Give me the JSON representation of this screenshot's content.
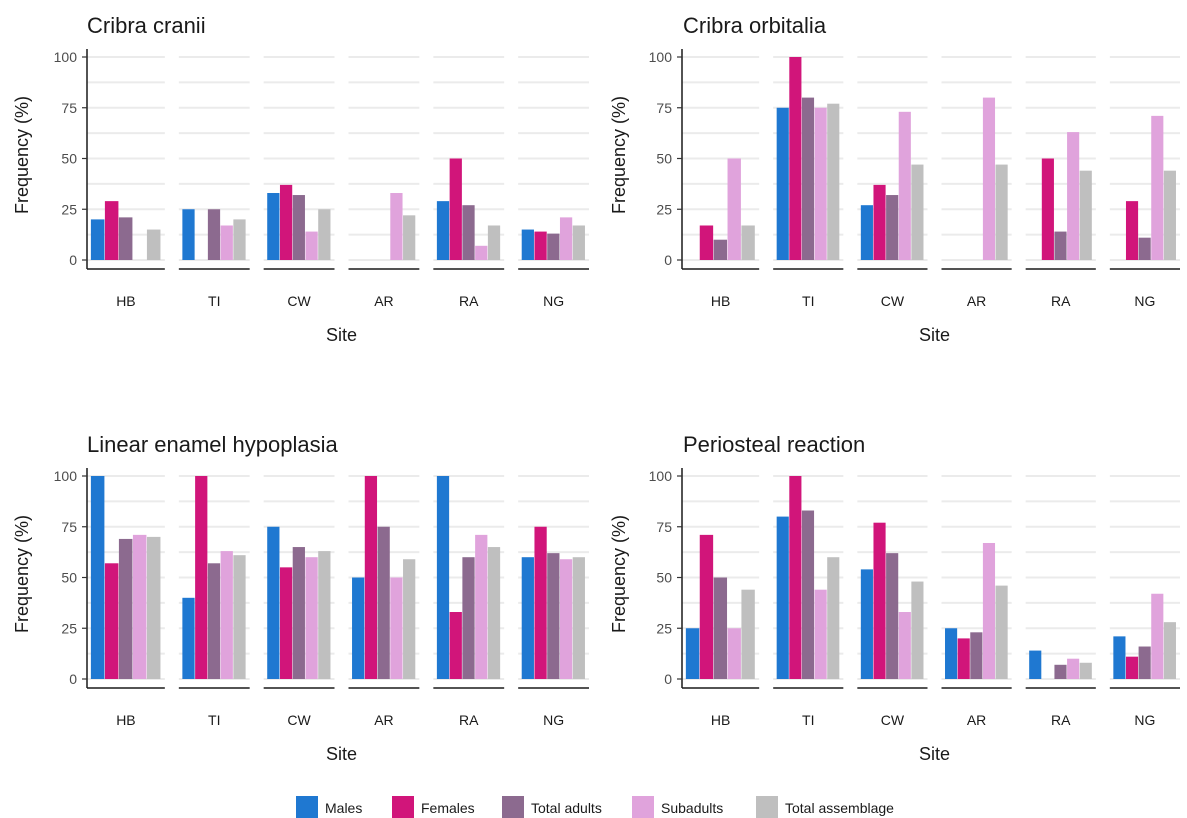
{
  "chart_data": [
    {
      "type": "bar",
      "title": "Cribra cranii",
      "xlabel": "Site",
      "ylabel": "Frequency (%)",
      "ylim": [
        0,
        100
      ],
      "yticks": [
        0,
        25,
        50,
        75,
        100
      ],
      "grid": true,
      "categories": [
        "HB",
        "TI",
        "CW",
        "AR",
        "RA",
        "NG"
      ],
      "series": [
        {
          "name": "Males",
          "values": [
            20,
            25,
            33,
            0,
            29,
            15
          ]
        },
        {
          "name": "Females",
          "values": [
            29,
            0,
            37,
            0,
            50,
            14
          ]
        },
        {
          "name": "Total adults",
          "values": [
            21,
            25,
            32,
            0,
            27,
            13
          ]
        },
        {
          "name": "Subadults",
          "values": [
            0,
            17,
            14,
            33,
            7,
            21
          ]
        },
        {
          "name": "Total assemblage",
          "values": [
            15,
            20,
            25,
            22,
            17,
            17
          ]
        }
      ]
    },
    {
      "type": "bar",
      "title": "Cribra orbitalia",
      "xlabel": "Site",
      "ylabel": "Frequency (%)",
      "ylim": [
        0,
        100
      ],
      "yticks": [
        0,
        25,
        50,
        75,
        100
      ],
      "grid": true,
      "categories": [
        "HB",
        "TI",
        "CW",
        "AR",
        "RA",
        "NG"
      ],
      "series": [
        {
          "name": "Males",
          "values": [
            0,
            75,
            27,
            0,
            0,
            0
          ]
        },
        {
          "name": "Females",
          "values": [
            17,
            100,
            37,
            0,
            50,
            29
          ]
        },
        {
          "name": "Total adults",
          "values": [
            10,
            80,
            32,
            0,
            14,
            11
          ]
        },
        {
          "name": "Subadults",
          "values": [
            50,
            75,
            73,
            80,
            63,
            71
          ]
        },
        {
          "name": "Total assemblage",
          "values": [
            17,
            77,
            47,
            47,
            44,
            44
          ]
        }
      ]
    },
    {
      "type": "bar",
      "title": "Linear enamel hypoplasia",
      "xlabel": "Site",
      "ylabel": "Frequency (%)",
      "ylim": [
        0,
        100
      ],
      "yticks": [
        0,
        25,
        50,
        75,
        100
      ],
      "grid": true,
      "categories": [
        "HB",
        "TI",
        "CW",
        "AR",
        "RA",
        "NG"
      ],
      "series": [
        {
          "name": "Males",
          "values": [
            100,
            40,
            75,
            50,
            100,
            60
          ]
        },
        {
          "name": "Females",
          "values": [
            57,
            100,
            55,
            100,
            33,
            75
          ]
        },
        {
          "name": "Total adults",
          "values": [
            69,
            57,
            65,
            75,
            60,
            62
          ]
        },
        {
          "name": "Subadults",
          "values": [
            71,
            63,
            60,
            50,
            71,
            59
          ]
        },
        {
          "name": "Total assemblage",
          "values": [
            70,
            61,
            63,
            59,
            65,
            60
          ]
        }
      ]
    },
    {
      "type": "bar",
      "title": "Periosteal reaction",
      "xlabel": "Site",
      "ylabel": "Frequency (%)",
      "ylim": [
        0,
        100
      ],
      "yticks": [
        0,
        25,
        50,
        75,
        100
      ],
      "grid": true,
      "categories": [
        "HB",
        "TI",
        "CW",
        "AR",
        "RA",
        "NG"
      ],
      "series": [
        {
          "name": "Males",
          "values": [
            25,
            80,
            54,
            25,
            14,
            21
          ]
        },
        {
          "name": "Females",
          "values": [
            71,
            100,
            77,
            20,
            0,
            11
          ]
        },
        {
          "name": "Total adults",
          "values": [
            50,
            83,
            62,
            23,
            7,
            16
          ]
        },
        {
          "name": "Subadults",
          "values": [
            25,
            44,
            33,
            67,
            10,
            42
          ]
        },
        {
          "name": "Total assemblage",
          "values": [
            44,
            60,
            48,
            46,
            8,
            28
          ]
        }
      ]
    }
  ],
  "legend": {
    "placement": "bottom",
    "items": [
      {
        "label": "Males",
        "color": "#1f78d1"
      },
      {
        "label": "Females",
        "color": "#d1157a"
      },
      {
        "label": "Total adults",
        "color": "#8c6a8f"
      },
      {
        "label": "Subadults",
        "color": "#e0a3dc"
      },
      {
        "label": "Total assemblage",
        "color": "#bfbfbf"
      }
    ]
  }
}
